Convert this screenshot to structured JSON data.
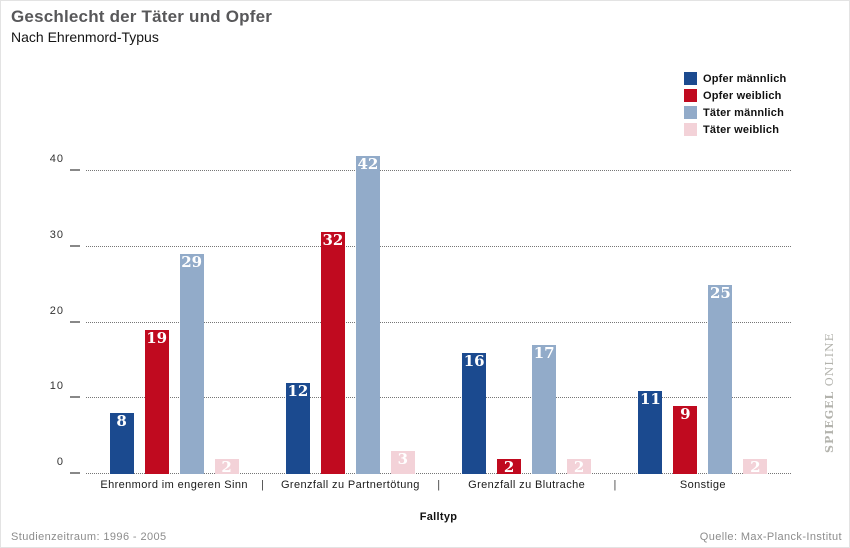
{
  "header": {
    "title": "Geschlecht der Täter und Opfer",
    "subtitle": "Nach Ehrenmord-Typus"
  },
  "chart_data": {
    "type": "bar",
    "title": "Geschlecht der Täter und Opfer",
    "subtitle": "Nach Ehrenmord-Typus",
    "categories": [
      "Ehrenmord im engeren Sinn",
      "Grenzfall zu Partnertötung",
      "Grenzfall zu Blutrache",
      "Sonstige"
    ],
    "series": [
      {
        "name": "Opfer männlich",
        "color": "#1b4a8f",
        "values": [
          8,
          12,
          16,
          11
        ]
      },
      {
        "name": "Opfer weiblich",
        "color": "#c00a1f",
        "values": [
          19,
          32,
          2,
          9
        ]
      },
      {
        "name": "Täter männlich",
        "color": "#92abc9",
        "values": [
          29,
          42,
          17,
          25
        ]
      },
      {
        "name": "Täter weiblich",
        "color": "#f3d2d8",
        "values": [
          2,
          3,
          2,
          2
        ]
      }
    ],
    "xlabel": "Falltyp",
    "ylabel": "",
    "ylim": [
      0,
      44
    ],
    "yticks": [
      0,
      10,
      20,
      30,
      40
    ],
    "grid": "dotted-horizontal",
    "legend_position": "top-right",
    "group_separator": "|",
    "bar_value_labels": "white-inside-top"
  },
  "footer": {
    "left": "Studienzeitraum: 1996 - 2005",
    "right": "Quelle: Max-Planck-Institut"
  },
  "watermark": {
    "brand": "SPIEGEL",
    "suffix": " ONLINE"
  }
}
